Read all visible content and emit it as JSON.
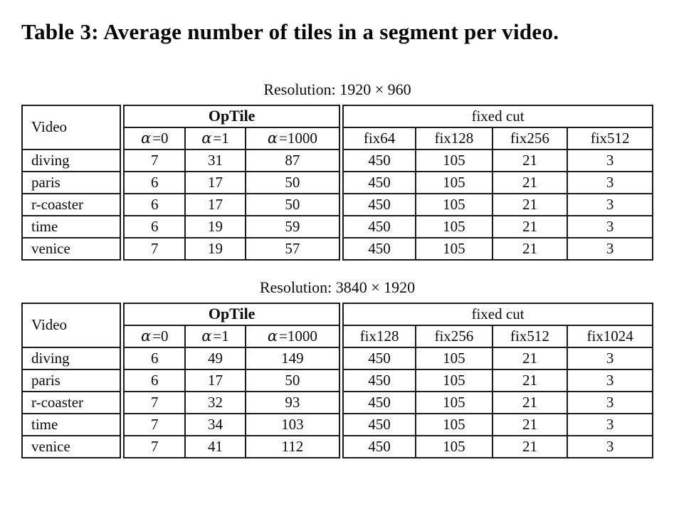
{
  "title": "Table 3: Average number of tiles in a segment per video.",
  "colors": {
    "background": "#ffffff",
    "text": "#0b0b0b",
    "border": "#1c1c1c"
  },
  "tables": [
    {
      "caption": "Resolution: 1920 × 960",
      "video_header": "Video",
      "group_headers": [
        {
          "label": "OpTile",
          "bold": true,
          "span": 3
        },
        {
          "label": "fixed cut",
          "bold": false,
          "span": 4
        }
      ],
      "alpha_headers": [
        {
          "sym": "α",
          "rest": "=0"
        },
        {
          "sym": "α",
          "rest": "=1"
        },
        {
          "sym": "α",
          "rest": "=1000"
        }
      ],
      "fix_headers": [
        "fix64",
        "fix128",
        "fix256",
        "fix512"
      ],
      "rows": [
        {
          "video": "diving",
          "values": [
            7,
            31,
            87,
            450,
            105,
            21,
            3
          ]
        },
        {
          "video": "paris",
          "values": [
            6,
            17,
            50,
            450,
            105,
            21,
            3
          ]
        },
        {
          "video": "r-coaster",
          "values": [
            6,
            17,
            50,
            450,
            105,
            21,
            3
          ]
        },
        {
          "video": "time",
          "values": [
            6,
            19,
            59,
            450,
            105,
            21,
            3
          ]
        },
        {
          "video": "venice",
          "values": [
            7,
            19,
            57,
            450,
            105,
            21,
            3
          ]
        }
      ]
    },
    {
      "caption": "Resolution: 3840 × 1920",
      "video_header": "Video",
      "group_headers": [
        {
          "label": "OpTile",
          "bold": true,
          "span": 3
        },
        {
          "label": "fixed cut",
          "bold": false,
          "span": 4
        }
      ],
      "alpha_headers": [
        {
          "sym": "α",
          "rest": "=0"
        },
        {
          "sym": "α",
          "rest": "=1"
        },
        {
          "sym": "α",
          "rest": "=1000"
        }
      ],
      "fix_headers": [
        "fix128",
        "fix256",
        "fix512",
        "fix1024"
      ],
      "rows": [
        {
          "video": "diving",
          "values": [
            6,
            49,
            149,
            450,
            105,
            21,
            3
          ]
        },
        {
          "video": "paris",
          "values": [
            6,
            17,
            50,
            450,
            105,
            21,
            3
          ]
        },
        {
          "video": "r-coaster",
          "values": [
            7,
            32,
            93,
            450,
            105,
            21,
            3
          ]
        },
        {
          "video": "time",
          "values": [
            7,
            34,
            103,
            450,
            105,
            21,
            3
          ]
        },
        {
          "video": "venice",
          "values": [
            7,
            41,
            112,
            450,
            105,
            21,
            3
          ]
        }
      ]
    }
  ]
}
